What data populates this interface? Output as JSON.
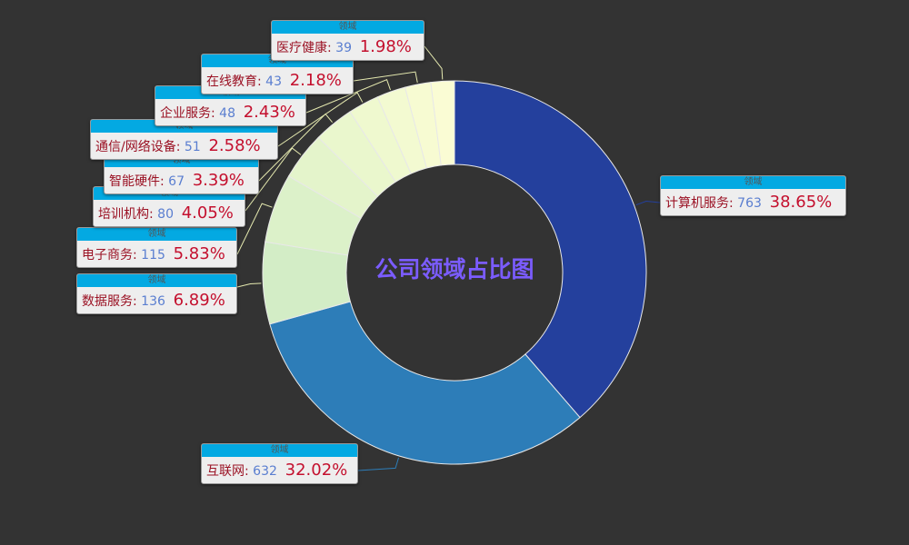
{
  "chart_data": {
    "type": "pie",
    "variant": "donut",
    "title": "公司领域占比图",
    "series_name": "领域",
    "slices": [
      {
        "name": "计算机服务",
        "value": 763,
        "percent": "38.65%",
        "color": "#24409d"
      },
      {
        "name": "互联网",
        "value": 632,
        "percent": "32.02%",
        "color": "#2d7db8"
      },
      {
        "name": "数据服务",
        "value": 136,
        "percent": "6.89%",
        "color": "#d3edc6"
      },
      {
        "name": "电子商务",
        "value": 115,
        "percent": "5.83%",
        "color": "#dcf1c9"
      },
      {
        "name": "培训机构",
        "value": 80,
        "percent": "4.05%",
        "color": "#e4f4cb"
      },
      {
        "name": "智能硬件",
        "value": 67,
        "percent": "3.39%",
        "color": "#eaf7cd"
      },
      {
        "name": "通信/网络设备",
        "value": 51,
        "percent": "2.58%",
        "color": "#eff9cf"
      },
      {
        "name": "企业服务",
        "value": 48,
        "percent": "2.43%",
        "color": "#f3fad1"
      },
      {
        "name": "在线教育",
        "value": 43,
        "percent": "2.18%",
        "color": "#f7fbd2"
      },
      {
        "name": "医疗健康",
        "value": 39,
        "percent": "1.98%",
        "color": "#fafcd4"
      }
    ],
    "legend": "none"
  }
}
